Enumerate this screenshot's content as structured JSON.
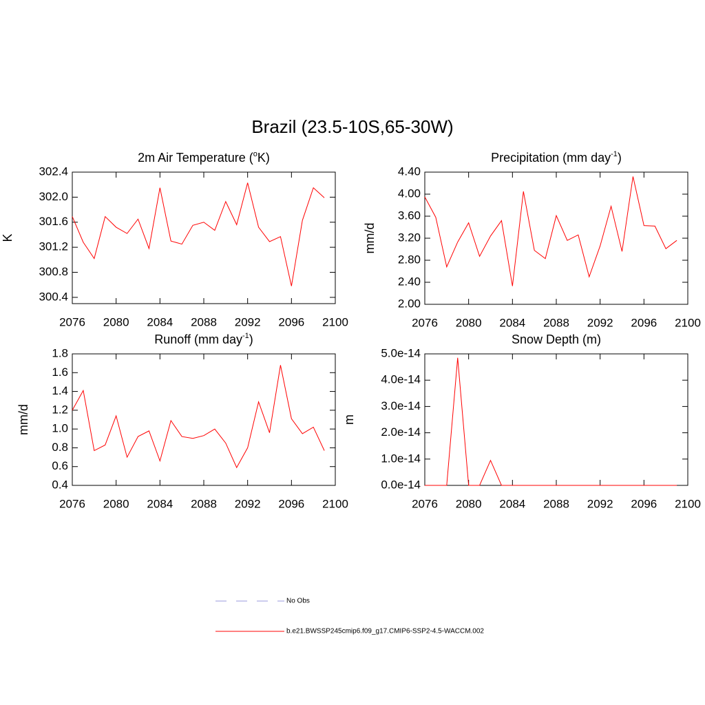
{
  "title": "Brazil (23.5-10S,65-30W)",
  "chart_data": [
    {
      "type": "line",
      "title": [
        {
          "text": "2m Air Temperature ("
        },
        {
          "text": "o",
          "sup": true
        },
        {
          "text": "K)"
        }
      ],
      "ylabel": "K",
      "x": [
        2076,
        2077,
        2078,
        2079,
        2080,
        2081,
        2082,
        2083,
        2084,
        2085,
        2086,
        2087,
        2088,
        2089,
        2090,
        2091,
        2092,
        2093,
        2094,
        2095,
        2096,
        2097,
        2098,
        2099
      ],
      "values": [
        301.69,
        301.28,
        301.02,
        301.69,
        301.52,
        301.42,
        301.65,
        301.18,
        302.15,
        301.3,
        301.25,
        301.55,
        301.6,
        301.47,
        301.93,
        301.56,
        302.23,
        301.52,
        301.29,
        301.37,
        300.58,
        301.63,
        302.15,
        301.99
      ],
      "color": "#ff0000",
      "xlim": [
        2076,
        2100
      ],
      "xticks": [
        2076,
        2080,
        2084,
        2088,
        2092,
        2096,
        2100
      ],
      "ylim": [
        300.3,
        302.4
      ],
      "yticks": [
        300.4,
        300.8,
        301.2,
        301.6,
        {
          "value": 302,
          "label": "302.0"
        },
        302.4
      ]
    },
    {
      "type": "line",
      "title": [
        {
          "text": "Precipitation (mm day"
        },
        {
          "text": "-1",
          "sup": true
        },
        {
          "text": ")"
        }
      ],
      "ylabel": "mm/d",
      "x": [
        2076,
        2077,
        2078,
        2079,
        2080,
        2081,
        2082,
        2083,
        2084,
        2085,
        2086,
        2087,
        2088,
        2089,
        2090,
        2091,
        2092,
        2093,
        2094,
        2095,
        2096,
        2097,
        2098,
        2099
      ],
      "values": [
        3.95,
        3.58,
        2.68,
        3.13,
        3.48,
        2.87,
        3.24,
        3.52,
        2.33,
        4.05,
        2.98,
        2.83,
        3.61,
        3.16,
        3.26,
        2.5,
        3.06,
        3.78,
        2.96,
        4.32,
        3.43,
        3.42,
        3.01,
        3.16
      ],
      "color": "#ff0000",
      "xlim": [
        2076,
        2100
      ],
      "xticks": [
        2076,
        2080,
        2084,
        2088,
        2092,
        2096,
        2100
      ],
      "ylim": [
        2.0,
        4.4
      ],
      "yticks": [
        {
          "value": 2,
          "label": "2.00"
        },
        {
          "value": 2.4,
          "label": "2.40"
        },
        {
          "value": 2.8,
          "label": "2.80"
        },
        {
          "value": 3.2,
          "label": "3.20"
        },
        {
          "value": 3.6,
          "label": "3.60"
        },
        {
          "value": 4,
          "label": "4.00"
        },
        {
          "value": 4.4,
          "label": "4.40"
        }
      ]
    },
    {
      "type": "line",
      "title": [
        {
          "text": "Runoff (mm day"
        },
        {
          "text": "-1",
          "sup": true
        },
        {
          "text": ")"
        }
      ],
      "ylabel": "mm/d",
      "x": [
        2076,
        2077,
        2078,
        2079,
        2080,
        2081,
        2082,
        2083,
        2084,
        2085,
        2086,
        2087,
        2088,
        2089,
        2090,
        2091,
        2092,
        2093,
        2094,
        2095,
        2096,
        2097,
        2098,
        2099
      ],
      "values": [
        1.2,
        1.41,
        0.77,
        0.83,
        1.14,
        0.7,
        0.92,
        0.98,
        0.66,
        1.09,
        0.92,
        0.9,
        0.93,
        1.0,
        0.85,
        0.59,
        0.8,
        1.29,
        0.96,
        1.68,
        1.11,
        0.95,
        1.02,
        0.77
      ],
      "color": "#ff0000",
      "xlim": [
        2076,
        2100
      ],
      "xticks": [
        2076,
        2080,
        2084,
        2088,
        2092,
        2096,
        2100
      ],
      "ylim": [
        0.4,
        1.8
      ],
      "yticks": [
        0.4,
        0.6,
        0.8,
        {
          "value": 1,
          "label": "1.0"
        },
        1.2,
        1.4,
        1.6,
        1.8
      ]
    },
    {
      "type": "line",
      "title": [
        {
          "text": "Snow Depth (m)"
        }
      ],
      "ylabel": "m",
      "x": [
        2076,
        2077,
        2078,
        2079,
        2080,
        2081,
        2082,
        2083,
        2084,
        2085,
        2086,
        2087,
        2088,
        2089,
        2090,
        2091,
        2092,
        2093,
        2094,
        2095,
        2096,
        2097,
        2098,
        2099
      ],
      "values": [
        0,
        0,
        0,
        4.85e-14,
        0,
        0,
        9.5e-15,
        0,
        0,
        0,
        0,
        0,
        0,
        0,
        0,
        0,
        0,
        0,
        0,
        0,
        0,
        0,
        0,
        0
      ],
      "color": "#ff0000",
      "xlim": [
        2076,
        2100
      ],
      "xticks": [
        2076,
        2080,
        2084,
        2088,
        2092,
        2096,
        2100
      ],
      "ylim": [
        0,
        5e-14
      ],
      "yticks": [
        {
          "value": 0,
          "label": "0.0e-14"
        },
        {
          "value": 1e-14,
          "label": "1.0e-14"
        },
        {
          "value": 2e-14,
          "label": "2.0e-14"
        },
        {
          "value": 3e-14,
          "label": "3.0e-14"
        },
        {
          "value": 4e-14,
          "label": "4.0e-14"
        },
        {
          "value": 5e-14,
          "label": "5.0e-14"
        }
      ]
    }
  ],
  "legend": [
    {
      "name": "No Obs",
      "color": "#9999dd",
      "dash": true
    },
    {
      "name": "b.e21.BWSSP245cmip6.f09_g17.CMIP6-SSP2-4.5-WACCM.002",
      "color": "#ff0000",
      "dash": false
    }
  ]
}
